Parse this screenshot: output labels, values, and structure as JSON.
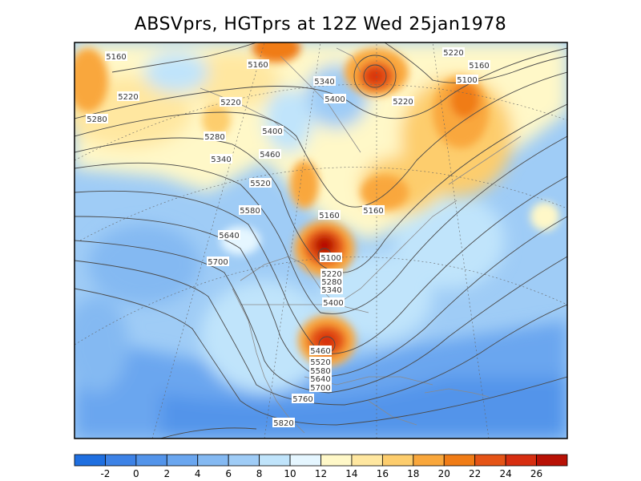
{
  "title": "ABSVprs, HGTprs at 12Z Wed 25jan1978",
  "colorbar": {
    "ticks": [
      "-2",
      "0",
      "2",
      "4",
      "6",
      "8",
      "10",
      "12",
      "14",
      "16",
      "18",
      "20",
      "22",
      "24",
      "26"
    ],
    "colors": [
      "#1f6fe0",
      "#3d82e6",
      "#5394ea",
      "#6aa6ef",
      "#84b9f2",
      "#9fccf6",
      "#c0e4fb",
      "#e5f6ff",
      "#fff8c8",
      "#ffe7a0",
      "#fdcd6d",
      "#f9a73c",
      "#f07c16",
      "#e55416",
      "#d72e10",
      "#b81105"
    ]
  },
  "contour_labels": [
    "5160",
    "5220",
    "5280",
    "5340",
    "5400",
    "5460",
    "5520",
    "5580",
    "5640",
    "5700",
    "5100",
    "5760",
    "5820"
  ],
  "colors": {
    "coast": "#8a8a8a",
    "contour": "#4a4a4a",
    "frame": "#000000"
  }
}
